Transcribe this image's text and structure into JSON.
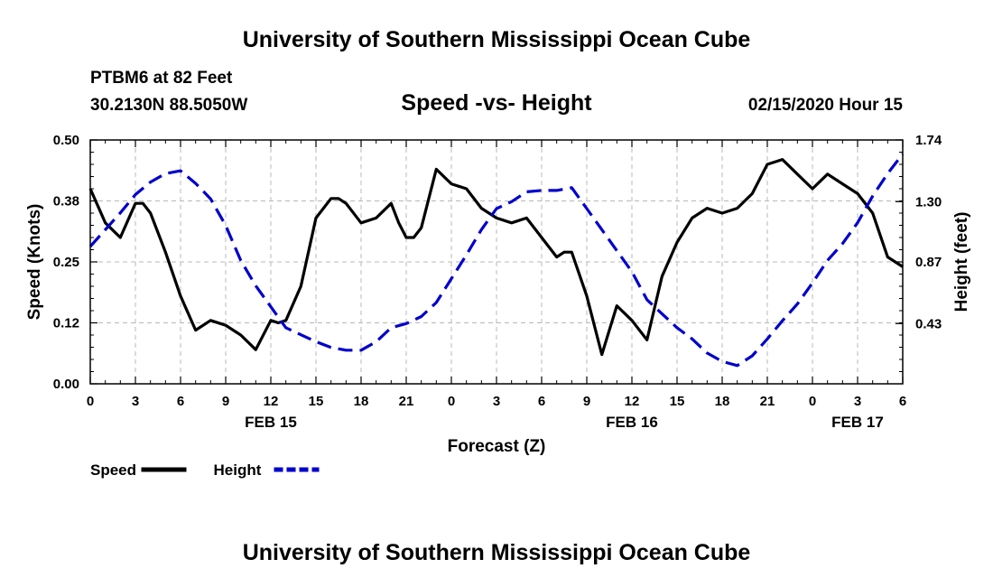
{
  "header": {
    "title": "University of Southern Mississippi Ocean Cube",
    "station": "PTBM6 at 82 Feet",
    "coords": "30.2130N 88.5050W",
    "datetime": "02/15/2020 Hour 15"
  },
  "footer": {
    "title": "University of Southern Mississippi Ocean Cube"
  },
  "chart_data": {
    "type": "line",
    "title": "Speed -vs- Height",
    "xlabel": "Forecast (Z)",
    "ylabel": "Speed (Knots)",
    "y2label": "Height (feet)",
    "xlim": [
      0,
      54
    ],
    "ylim": [
      0,
      0.5
    ],
    "y2lim": [
      0,
      1.74
    ],
    "x_ticks": [
      0,
      3,
      6,
      9,
      12,
      15,
      18,
      21,
      24,
      27,
      30,
      33,
      36,
      39,
      42,
      45,
      48,
      51,
      54
    ],
    "x_tick_labels": [
      "0",
      "3",
      "6",
      "9",
      "12",
      "15",
      "18",
      "21",
      "0",
      "3",
      "6",
      "9",
      "12",
      "15",
      "18",
      "21",
      "0",
      "3",
      "6"
    ],
    "y_ticks": [
      0,
      0.125,
      0.25,
      0.375,
      0.5
    ],
    "y_tick_labels": [
      "0.00",
      "0.12",
      "0.25",
      "0.38",
      "0.50"
    ],
    "y2_ticks": [
      0.43,
      0.87,
      1.3,
      1.74
    ],
    "y2_tick_labels": [
      "0.43",
      "0.87",
      "1.30",
      "1.74"
    ],
    "date_labels": [
      {
        "x": 12,
        "label": "FEB 15"
      },
      {
        "x": 36,
        "label": "FEB 16"
      },
      {
        "x": 51,
        "label": "FEB 17"
      }
    ],
    "grid": true,
    "series": [
      {
        "name": "Speed",
        "axis": "left",
        "color": "#000000",
        "dash": "solid",
        "x": [
          0,
          1,
          2,
          3,
          3.5,
          4,
          5,
          6,
          7,
          8,
          9,
          10,
          11,
          12,
          12.5,
          13,
          14,
          15,
          16,
          16.5,
          17,
          18,
          19,
          20,
          20.5,
          21,
          21.5,
          22,
          22.5,
          23,
          24,
          25,
          26,
          27,
          28,
          29,
          30,
          31,
          31.5,
          32,
          33,
          34,
          35,
          36,
          37,
          38,
          39,
          40,
          41,
          42,
          43,
          44,
          45,
          46,
          47,
          48,
          49,
          50,
          51,
          52,
          53,
          54
        ],
        "values": [
          0.4,
          0.33,
          0.3,
          0.37,
          0.37,
          0.35,
          0.27,
          0.18,
          0.11,
          0.13,
          0.12,
          0.1,
          0.07,
          0.13,
          0.125,
          0.13,
          0.2,
          0.34,
          0.38,
          0.38,
          0.37,
          0.33,
          0.34,
          0.37,
          0.33,
          0.3,
          0.3,
          0.32,
          0.38,
          0.44,
          0.41,
          0.4,
          0.36,
          0.34,
          0.33,
          0.34,
          0.3,
          0.26,
          0.27,
          0.27,
          0.18,
          0.06,
          0.16,
          0.13,
          0.09,
          0.22,
          0.29,
          0.34,
          0.36,
          0.35,
          0.36,
          0.39,
          0.45,
          0.46,
          0.43,
          0.4,
          0.43,
          0.41,
          0.39,
          0.35,
          0.26,
          0.24
        ]
      },
      {
        "name": "Height",
        "axis": "right",
        "color": "#0000cc",
        "dash": "dashed",
        "x": [
          0,
          1,
          2,
          3,
          4,
          5,
          6,
          7,
          8,
          9,
          10,
          11,
          12,
          13,
          14,
          15,
          16,
          17,
          18,
          19,
          20,
          21,
          22,
          23,
          24,
          25,
          26,
          27,
          28,
          29,
          30,
          31,
          32,
          33,
          34,
          35,
          36,
          37,
          38,
          39,
          40,
          41,
          42,
          43,
          44,
          45,
          46,
          47,
          48,
          49,
          50,
          51,
          52,
          53,
          54
        ],
        "values": [
          0.98,
          1.1,
          1.22,
          1.35,
          1.44,
          1.5,
          1.52,
          1.43,
          1.32,
          1.13,
          0.88,
          0.7,
          0.55,
          0.4,
          0.35,
          0.3,
          0.26,
          0.24,
          0.24,
          0.3,
          0.4,
          0.43,
          0.48,
          0.58,
          0.75,
          0.92,
          1.1,
          1.25,
          1.3,
          1.37,
          1.38,
          1.38,
          1.4,
          1.25,
          1.1,
          0.95,
          0.8,
          0.6,
          0.5,
          0.4,
          0.32,
          0.22,
          0.16,
          0.13,
          0.2,
          0.32,
          0.45,
          0.57,
          0.72,
          0.88,
          1.0,
          1.15,
          1.34,
          1.5,
          1.64
        ]
      }
    ],
    "legend": {
      "position": "bottom-left",
      "entries": [
        {
          "label": "Speed",
          "color": "#000000",
          "dash": "solid"
        },
        {
          "label": "Height",
          "color": "#0000cc",
          "dash": "dashed"
        }
      ]
    }
  }
}
